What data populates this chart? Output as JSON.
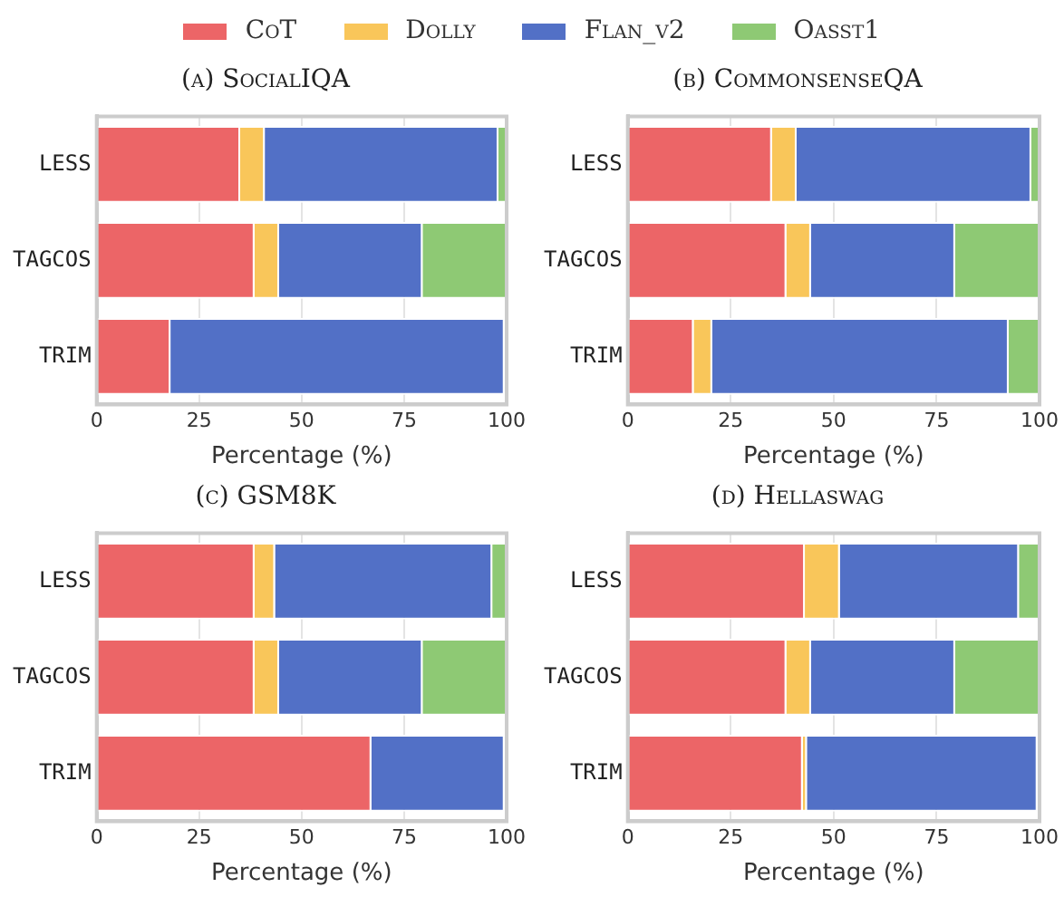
{
  "chart_data": [
    {
      "type": "bar",
      "orientation": "horizontal",
      "stacked": true,
      "title": "(a) SocialIQA",
      "categories": [
        "LESS",
        "TAGCOS",
        "TRIM"
      ],
      "xlabel": "Percentage (%)",
      "xlim": [
        0,
        100
      ],
      "xticks": [
        0,
        25,
        50,
        75,
        100
      ],
      "grid": "x",
      "legend": "top",
      "series": [
        {
          "name": "CoT",
          "color": "#ec6567",
          "values": [
            35,
            38.5,
            18
          ]
        },
        {
          "name": "Dolly",
          "color": "#f9c65a",
          "values": [
            6,
            6,
            0
          ]
        },
        {
          "name": "Flan_v2",
          "color": "#5270c6",
          "values": [
            57,
            35,
            81.5
          ]
        },
        {
          "name": "Oasst1",
          "color": "#8ec974",
          "values": [
            2,
            20.5,
            0
          ]
        }
      ]
    },
    {
      "type": "bar",
      "orientation": "horizontal",
      "stacked": true,
      "title": "(b) CommonsenseQA",
      "categories": [
        "LESS",
        "TAGCOS",
        "TRIM"
      ],
      "xlabel": "Percentage (%)",
      "xlim": [
        0,
        100
      ],
      "xticks": [
        0,
        25,
        50,
        75,
        100
      ],
      "grid": "x",
      "series": [
        {
          "color": "#ec6567",
          "values": [
            35,
            38.5,
            16
          ]
        },
        {
          "color": "#f9c65a",
          "values": [
            6,
            6,
            4.5
          ]
        },
        {
          "color": "#5270c6",
          "values": [
            57,
            35,
            72
          ]
        },
        {
          "color": "#8ec974",
          "values": [
            2,
            20.5,
            7.5
          ]
        }
      ]
    },
    {
      "type": "bar",
      "orientation": "horizontal",
      "stacked": true,
      "title": "(c) GSM8K",
      "categories": [
        "LESS",
        "TAGCOS",
        "TRIM"
      ],
      "xlabel": "Percentage (%)",
      "xlim": [
        0,
        100
      ],
      "xticks": [
        0,
        25,
        50,
        75,
        100
      ],
      "grid": "x",
      "series": [
        {
          "color": "#ec6567",
          "values": [
            38.5,
            38.5,
            67
          ]
        },
        {
          "color": "#f9c65a",
          "values": [
            5,
            6,
            0
          ]
        },
        {
          "color": "#5270c6",
          "values": [
            53,
            35,
            32.5
          ]
        },
        {
          "color": "#8ec974",
          "values": [
            3.5,
            20.5,
            0
          ]
        }
      ]
    },
    {
      "type": "bar",
      "orientation": "horizontal",
      "stacked": true,
      "title": "(d) Hellaswag",
      "categories": [
        "LESS",
        "TAGCOS",
        "TRIM"
      ],
      "xlabel": "Percentage (%)",
      "xlim": [
        0,
        100
      ],
      "xticks": [
        0,
        25,
        50,
        75,
        100
      ],
      "grid": "x",
      "series": [
        {
          "color": "#ec6567",
          "values": [
            43,
            38.5,
            42.5
          ]
        },
        {
          "color": "#f9c65a",
          "values": [
            8.5,
            6,
            1
          ]
        },
        {
          "color": "#5270c6",
          "values": [
            43.5,
            35,
            56
          ]
        },
        {
          "color": "#8ec974",
          "values": [
            5,
            20.5,
            0
          ]
        }
      ]
    }
  ]
}
